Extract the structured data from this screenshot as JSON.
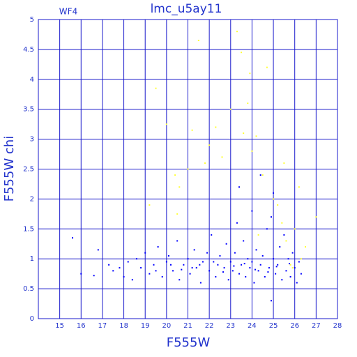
{
  "chart_data": {
    "type": "scatter",
    "title": "lmc_u5ay11",
    "annotation": "WF4",
    "x_label": "F555W",
    "y_label": "F555W chi",
    "xlim": [
      14,
      28
    ],
    "ylim": [
      0,
      5
    ],
    "xticks": [
      15,
      16,
      17,
      18,
      19,
      20,
      21,
      22,
      23,
      24,
      25,
      26,
      27,
      28
    ],
    "yticks": [
      0,
      0.5,
      1,
      1.5,
      2,
      2.5,
      3,
      3.5,
      4,
      4.5,
      5
    ],
    "grid": true,
    "series": [
      {
        "color": "#0000ff",
        "x": [
          15.6,
          16.0,
          16.6,
          16.8,
          17.3,
          17.5,
          17.8,
          18.0,
          18.2,
          18.4,
          18.6,
          18.8,
          19.0,
          19.2,
          19.4,
          19.6,
          19.8,
          20.0,
          20.1,
          20.3,
          20.5,
          20.6,
          20.8,
          21.0,
          21.1,
          21.3,
          21.4,
          21.6,
          21.7,
          21.9,
          22.0,
          22.1,
          22.3,
          22.4,
          22.5,
          22.7,
          22.8,
          22.9,
          23.0,
          23.1,
          23.2,
          23.3,
          23.4,
          23.5,
          23.6,
          23.7,
          23.8,
          23.9,
          24.0,
          24.0,
          24.1,
          24.2,
          24.3,
          24.4,
          24.4,
          24.5,
          24.6,
          24.7,
          24.8,
          24.9,
          25.0,
          25.0,
          25.1,
          25.2,
          25.3,
          25.4,
          25.5,
          25.6,
          25.7,
          25.8,
          25.9,
          26.0,
          26.1,
          26.2,
          26.3,
          19.5,
          20.2,
          21.2,
          22.2,
          23.15,
          24.15,
          25.15,
          25.75,
          24.75,
          23.65,
          22.65,
          21.55,
          20.7,
          24.9,
          23.4
        ],
        "values": [
          1.35,
          0.75,
          0.72,
          1.15,
          0.9,
          0.8,
          0.85,
          0.7,
          0.95,
          0.65,
          1.0,
          0.85,
          1.1,
          0.75,
          0.9,
          1.2,
          0.7,
          0.95,
          1.05,
          0.8,
          1.3,
          0.65,
          0.9,
          1.0,
          0.75,
          1.15,
          0.85,
          0.6,
          0.95,
          1.1,
          0.8,
          1.4,
          0.7,
          0.9,
          1.05,
          0.85,
          1.25,
          0.65,
          0.95,
          0.8,
          1.1,
          1.6,
          0.75,
          0.9,
          1.3,
          0.7,
          1.0,
          0.85,
          1.8,
          0.95,
          0.6,
          1.15,
          0.8,
          2.4,
          0.9,
          1.05,
          0.7,
          1.5,
          0.85,
          0.3,
          1.0,
          2.1,
          0.75,
          0.9,
          1.2,
          0.65,
          1.4,
          0.8,
          1.0,
          0.7,
          1.1,
          0.85,
          0.6,
          0.95,
          0.75,
          0.8,
          0.9,
          0.85,
          0.95,
          0.88,
          0.82,
          0.87,
          0.92,
          0.78,
          0.92,
          0.78,
          0.9,
          0.82,
          1.7,
          2.2
        ]
      },
      {
        "color": "#ffff33",
        "x": [
          19.5,
          20.0,
          20.4,
          20.6,
          21.0,
          21.2,
          21.5,
          21.8,
          22.0,
          22.3,
          22.6,
          23.0,
          23.3,
          23.5,
          23.6,
          23.8,
          24.0,
          24.2,
          24.5,
          24.7,
          25.0,
          25.2,
          25.4,
          25.6,
          25.8,
          26.0,
          26.2,
          26.5,
          27.0,
          19.2,
          20.5,
          23.9,
          24.3,
          25.5,
          25.9,
          26.3
        ],
        "values": [
          3.85,
          3.25,
          2.4,
          2.2,
          2.5,
          3.15,
          4.65,
          2.6,
          2.9,
          3.2,
          2.7,
          3.5,
          4.8,
          4.45,
          3.1,
          3.6,
          2.8,
          3.05,
          2.4,
          4.2,
          2.0,
          1.9,
          1.6,
          1.3,
          0.9,
          1.5,
          2.2,
          1.2,
          1.7,
          1.9,
          1.75,
          4.1,
          1.4,
          2.6,
          0.85,
          1.0
        ]
      }
    ]
  }
}
